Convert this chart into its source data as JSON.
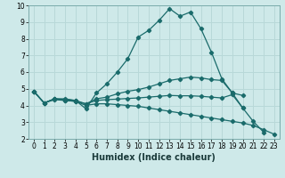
{
  "xlabel": "Humidex (Indice chaleur)",
  "bg_color": "#cee9e9",
  "grid_color": "#b8d8d8",
  "line_color": "#1a6b6b",
  "xlim": [
    -0.5,
    23.5
  ],
  "ylim": [
    2,
    10
  ],
  "yticks": [
    2,
    3,
    4,
    5,
    6,
    7,
    8,
    9,
    10
  ],
  "xticks": [
    0,
    1,
    2,
    3,
    4,
    5,
    6,
    7,
    8,
    9,
    10,
    11,
    12,
    13,
    14,
    15,
    16,
    17,
    18,
    19,
    20,
    21,
    22,
    23
  ],
  "lines": [
    {
      "x": [
        0,
        1,
        2,
        3,
        4,
        5,
        6,
        7,
        8,
        9,
        10,
        11,
        12,
        13,
        14,
        15,
        16,
        17,
        18,
        19,
        20,
        21,
        22
      ],
      "y": [
        4.85,
        4.15,
        4.4,
        4.4,
        4.3,
        3.8,
        4.75,
        5.3,
        6.0,
        6.8,
        8.1,
        8.5,
        9.1,
        9.8,
        9.35,
        9.6,
        8.6,
        7.2,
        5.6,
        4.75,
        3.85,
        3.05,
        2.4
      ]
    },
    {
      "x": [
        0,
        1,
        2,
        3,
        4,
        5,
        6,
        7,
        8,
        9,
        10,
        11,
        12,
        13,
        14,
        15,
        16,
        17,
        18,
        19,
        20
      ],
      "y": [
        4.85,
        4.15,
        4.4,
        4.35,
        4.3,
        4.1,
        4.4,
        4.5,
        4.7,
        4.85,
        4.95,
        5.1,
        5.3,
        5.5,
        5.6,
        5.7,
        5.65,
        5.55,
        5.5,
        4.75,
        4.6
      ]
    },
    {
      "x": [
        0,
        1,
        2,
        3,
        4,
        5,
        6,
        7,
        8,
        9,
        10,
        11,
        12,
        13,
        14,
        15,
        16,
        17,
        18,
        19,
        20
      ],
      "y": [
        4.85,
        4.15,
        4.4,
        4.3,
        4.25,
        4.1,
        4.3,
        4.35,
        4.38,
        4.42,
        4.45,
        4.5,
        4.55,
        4.6,
        4.58,
        4.58,
        4.55,
        4.5,
        4.45,
        4.65,
        3.85
      ]
    },
    {
      "x": [
        0,
        1,
        2,
        3,
        4,
        5,
        6,
        7,
        8,
        9,
        10,
        11,
        12,
        13,
        14,
        15,
        16,
        17,
        18,
        19,
        20,
        21,
        22,
        23
      ],
      "y": [
        4.85,
        4.15,
        4.35,
        4.3,
        4.25,
        4.0,
        4.1,
        4.1,
        4.05,
        4.0,
        3.95,
        3.85,
        3.75,
        3.65,
        3.55,
        3.45,
        3.35,
        3.25,
        3.15,
        3.05,
        2.95,
        2.8,
        2.55,
        2.28
      ]
    }
  ]
}
